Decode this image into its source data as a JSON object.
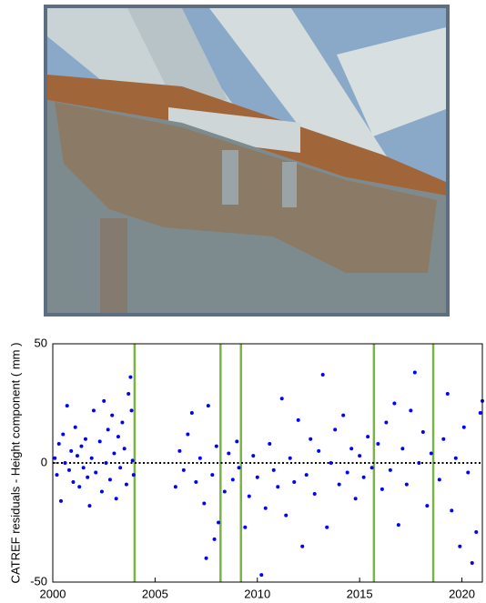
{
  "chart_data": {
    "type": "scatter",
    "ylabel": "CATREF residuals - Height component ( mm )",
    "xlim": [
      2000,
      2021
    ],
    "xticks": [
      2000,
      2005,
      2010,
      2015,
      2020
    ],
    "ylim": [
      -50,
      50
    ],
    "yticks": [
      -50,
      0,
      50
    ],
    "hline": 0,
    "event_color": "#7cb342",
    "events": [
      2004.0,
      2008.2,
      2009.2,
      2015.7,
      2018.6
    ],
    "series": [
      {
        "color": "#0000ff",
        "x": [
          2000.1,
          2000.2,
          2000.3,
          2000.4,
          2000.5,
          2000.6,
          2000.7,
          2000.8,
          2000.9,
          2001.0,
          2001.1,
          2001.2,
          2001.3,
          2001.4,
          2001.5,
          2001.6,
          2001.7,
          2001.8,
          2001.9,
          2002.0,
          2002.1,
          2002.3,
          2002.4,
          2002.5,
          2002.6,
          2002.7,
          2002.8,
          2002.9,
          2003.0,
          2003.1,
          2003.2,
          2003.3,
          2003.4,
          2003.5,
          2003.6,
          2003.7,
          2003.8,
          2003.85,
          2003.9,
          2003.95,
          2006.0,
          2006.2,
          2006.4,
          2006.6,
          2006.8,
          2007.0,
          2007.2,
          2007.4,
          2007.5,
          2007.6,
          2007.8,
          2007.9,
          2008.0,
          2008.1,
          2008.4,
          2008.6,
          2008.8,
          2009.0,
          2009.1,
          2009.4,
          2009.6,
          2009.8,
          2010.0,
          2010.2,
          2010.4,
          2010.6,
          2010.8,
          2011.0,
          2011.2,
          2011.4,
          2011.6,
          2011.8,
          2012.0,
          2012.2,
          2012.4,
          2012.6,
          2012.8,
          2013.0,
          2013.2,
          2013.4,
          2013.6,
          2013.8,
          2014.0,
          2014.2,
          2014.4,
          2014.6,
          2014.8,
          2015.0,
          2015.2,
          2015.4,
          2015.6,
          2015.9,
          2016.1,
          2016.3,
          2016.5,
          2016.7,
          2016.9,
          2017.1,
          2017.3,
          2017.5,
          2017.7,
          2017.9,
          2018.1,
          2018.3,
          2018.5,
          2018.9,
          2019.1,
          2019.3,
          2019.5,
          2019.7,
          2019.9,
          2020.1,
          2020.3,
          2020.5,
          2020.7,
          2020.9,
          2021.0
        ],
        "values": [
          2,
          -5,
          8,
          -16,
          12,
          0,
          24,
          -3,
          5,
          -8,
          15,
          3,
          -10,
          7,
          -2,
          10,
          -6,
          -18,
          2,
          22,
          -4,
          9,
          -12,
          26,
          0,
          14,
          -7,
          20,
          4,
          -15,
          11,
          -2,
          17,
          6,
          -9,
          29,
          36,
          22,
          1,
          -5,
          -10,
          5,
          -3,
          12,
          21,
          -8,
          2,
          -17,
          -40,
          24,
          -5,
          -32,
          7,
          -25,
          -12,
          4,
          -7,
          9,
          -2,
          -27,
          -14,
          3,
          -6,
          -47,
          -19,
          8,
          -3,
          -10,
          27,
          -22,
          2,
          -8,
          18,
          -35,
          -5,
          10,
          -13,
          5,
          37,
          -27,
          0,
          14,
          -9,
          20,
          -4,
          6,
          -15,
          3,
          -6,
          11,
          -2,
          8,
          -11,
          17,
          -3,
          25,
          -26,
          6,
          -9,
          22,
          38,
          0,
          13,
          -18,
          4,
          -7,
          10,
          29,
          -20,
          2,
          -35,
          15,
          -4,
          -42,
          -29,
          21,
          26
        ]
      }
    ]
  }
}
